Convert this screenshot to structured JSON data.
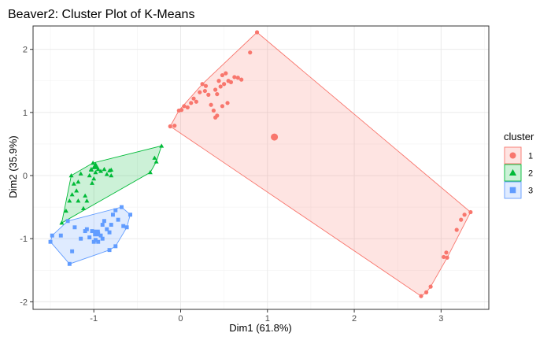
{
  "chart_data": {
    "type": "scatter",
    "title": "Beaver2: Cluster Plot of K-Means",
    "xlabel": "Dim1 (61.8%)",
    "ylabel": "Dim2 (35.9%)",
    "xlim": [
      -1.7,
      3.55
    ],
    "ylim": [
      -2.12,
      2.37
    ],
    "xticks": [
      -1,
      0,
      1,
      2,
      3
    ],
    "yticks": [
      -2,
      -1,
      0,
      1,
      2
    ],
    "xtick_labels": [
      "-1",
      "0",
      "1",
      "2",
      "3"
    ],
    "ytick_labels": [
      "-2",
      "-1",
      "0",
      "1",
      "2"
    ],
    "grid": true,
    "legend": {
      "title": "cluster",
      "position": "right"
    },
    "series": [
      {
        "name": "1",
        "color": "#F8766D",
        "fill": "rgba(248,118,109,0.20)",
        "shape": "circle",
        "centroid": [
          1.08,
          0.61
        ],
        "points": [
          [
            -0.12,
            0.78
          ],
          [
            -0.07,
            0.79
          ],
          [
            -0.02,
            1.03
          ],
          [
            0.01,
            1.04
          ],
          [
            0.04,
            1.1
          ],
          [
            0.08,
            1.08
          ],
          [
            0.12,
            1.15
          ],
          [
            0.15,
            1.22
          ],
          [
            0.18,
            1.17
          ],
          [
            0.22,
            1.32
          ],
          [
            0.25,
            1.45
          ],
          [
            0.28,
            1.34
          ],
          [
            0.29,
            1.42
          ],
          [
            0.32,
            1.28
          ],
          [
            0.35,
            1.12
          ],
          [
            0.38,
            1.03
          ],
          [
            0.4,
            1.36
          ],
          [
            0.42,
            1.29
          ],
          [
            0.44,
            1.5
          ],
          [
            0.46,
            1.41
          ],
          [
            0.48,
            1.59
          ],
          [
            0.5,
            1.45
          ],
          [
            0.52,
            1.62
          ],
          [
            0.55,
            1.5
          ],
          [
            0.58,
            1.48
          ],
          [
            0.62,
            1.56
          ],
          [
            0.66,
            1.55
          ],
          [
            0.7,
            1.52
          ],
          [
            0.42,
            0.95
          ],
          [
            0.4,
            0.92
          ],
          [
            0.48,
            1.1
          ],
          [
            0.54,
            1.15
          ],
          [
            0.8,
            1.95
          ],
          [
            0.88,
            2.27
          ],
          [
            2.77,
            -1.91
          ],
          [
            2.83,
            -1.85
          ],
          [
            2.88,
            -1.76
          ],
          [
            3.03,
            -1.29
          ],
          [
            3.06,
            -1.22
          ],
          [
            3.07,
            -1.3
          ],
          [
            3.18,
            -0.86
          ],
          [
            3.23,
            -0.7
          ],
          [
            3.27,
            -0.62
          ],
          [
            3.34,
            -0.58
          ]
        ]
      },
      {
        "name": "2",
        "color": "#00BA38",
        "fill": "rgba(0,186,56,0.20)",
        "shape": "triangle",
        "centroid": [
          -0.98,
          0.15
        ],
        "points": [
          [
            -1.37,
            -0.75
          ],
          [
            -1.32,
            -0.56
          ],
          [
            -1.28,
            -0.4
          ],
          [
            -1.25,
            -0.3
          ],
          [
            -1.26,
            0.0
          ],
          [
            -1.23,
            -0.13
          ],
          [
            -1.2,
            -0.24
          ],
          [
            -1.18,
            -0.1
          ],
          [
            -1.15,
            0.03
          ],
          [
            -1.12,
            -0.52
          ],
          [
            -1.1,
            -0.32
          ],
          [
            -1.08,
            -0.4
          ],
          [
            -1.05,
            0.0
          ],
          [
            -1.02,
            -0.12
          ],
          [
            -1.0,
            -0.05
          ],
          [
            -0.95,
            0.1
          ],
          [
            -0.92,
            0.07
          ],
          [
            -0.88,
            0.1
          ],
          [
            -0.85,
            0.02
          ],
          [
            -0.82,
            0.08
          ],
          [
            -0.8,
            0.0
          ],
          [
            -1.03,
            0.1
          ],
          [
            -0.98,
            0.05
          ],
          [
            -1.18,
            -0.4
          ],
          [
            -1.03,
            0.09
          ],
          [
            -0.8,
            0.09
          ],
          [
            -0.35,
            0.05
          ],
          [
            -0.3,
            0.28
          ],
          [
            -0.28,
            0.22
          ],
          [
            -0.22,
            0.47
          ],
          [
            -1.01,
            0.2
          ]
        ]
      },
      {
        "name": "3",
        "color": "#619CFF",
        "fill": "rgba(97,156,255,0.20)",
        "shape": "square",
        "centroid": [
          -0.97,
          -0.91
        ],
        "points": [
          [
            -1.5,
            -1.05
          ],
          [
            -1.48,
            -0.95
          ],
          [
            -1.38,
            -0.95
          ],
          [
            -1.3,
            -0.72
          ],
          [
            -1.22,
            -0.82
          ],
          [
            -1.28,
            -1.4
          ],
          [
            -1.25,
            -1.2
          ],
          [
            -1.15,
            -1.0
          ],
          [
            -1.1,
            -0.88
          ],
          [
            -1.08,
            -0.85
          ],
          [
            -1.05,
            -0.98
          ],
          [
            -1.02,
            -0.88
          ],
          [
            -0.98,
            -1.02
          ],
          [
            -0.95,
            -1.05
          ],
          [
            -0.92,
            -0.95
          ],
          [
            -0.9,
            -0.78
          ],
          [
            -0.88,
            -0.72
          ],
          [
            -0.85,
            -0.85
          ],
          [
            -0.82,
            -0.9
          ],
          [
            -0.78,
            -0.62
          ],
          [
            -0.75,
            -0.55
          ],
          [
            -0.72,
            -0.7
          ],
          [
            -0.68,
            -0.5
          ],
          [
            -0.66,
            -0.8
          ],
          [
            -0.75,
            -1.12
          ],
          [
            -0.82,
            -1.18
          ],
          [
            -0.62,
            -0.82
          ],
          [
            -0.58,
            -0.62
          ],
          [
            -1.0,
            -1.05
          ],
          [
            -0.9,
            -1.0
          ],
          [
            -0.8,
            -0.78
          ],
          [
            -0.95,
            -0.92
          ]
        ]
      }
    ]
  }
}
